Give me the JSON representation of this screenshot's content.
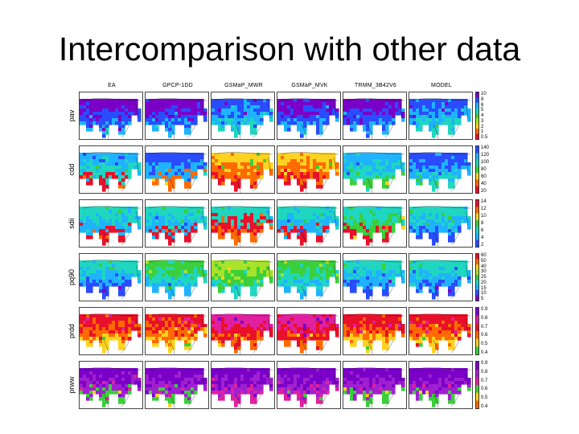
{
  "slide": {
    "title": "Intercomparison with other data"
  },
  "figure": {
    "columns": [
      "EA",
      "GPCP-1DD",
      "GSMaP_MWR",
      "GSMaP_MVK",
      "TRMM_3B42V6",
      "MODEL"
    ],
    "rows": [
      {
        "label": "pav",
        "ticks": [
          "10",
          "8",
          "6",
          "5",
          "4",
          "3",
          "2",
          "1",
          "0.5"
        ],
        "palette": [
          "#7a00c8",
          "#2a4cff",
          "#1fb3ff",
          "#1fd6c0",
          "#3bcf3b",
          "#a8e22a",
          "#ffd21f",
          "#ff6a00",
          "#e8102a"
        ],
        "dominant": [
          [
            0,
            1,
            2
          ],
          [
            0,
            1,
            2
          ],
          [
            1,
            2,
            3
          ],
          [
            0,
            1,
            2
          ],
          [
            0,
            1,
            2
          ],
          [
            1,
            2,
            3
          ]
        ]
      },
      {
        "label": "cdd",
        "ticks": [
          "140",
          "120",
          "100",
          "80",
          "60",
          "40",
          "20"
        ],
        "palette": [
          "#2a4cff",
          "#1fb3ff",
          "#1fd6c0",
          "#3bcf3b",
          "#ffd21f",
          "#ff6a00",
          "#e8102a"
        ],
        "dominant": [
          [
            1,
            2,
            6
          ],
          [
            0,
            1,
            5
          ],
          [
            4,
            5,
            6
          ],
          [
            4,
            5,
            6
          ],
          [
            1,
            2,
            3
          ],
          [
            0,
            1,
            2
          ]
        ]
      },
      {
        "label": "sdii",
        "ticks": [
          "14",
          "12",
          "10",
          "8",
          "6",
          "4",
          "2"
        ],
        "palette": [
          "#e8102a",
          "#ff6a00",
          "#ffd21f",
          "#3bcf3b",
          "#1fd6c0",
          "#1fb3ff",
          "#2a4cff"
        ],
        "dominant": [
          [
            4,
            5,
            0
          ],
          [
            4,
            5,
            0
          ],
          [
            4,
            0,
            1
          ],
          [
            4,
            5,
            0
          ],
          [
            4,
            3,
            0
          ],
          [
            4,
            5,
            6
          ]
        ]
      },
      {
        "label": "pq90",
        "ticks": [
          "60",
          "50",
          "40",
          "30",
          "25",
          "20",
          "15",
          "10",
          "5"
        ],
        "palette": [
          "#e8102a",
          "#ff6a00",
          "#ffd21f",
          "#a8e22a",
          "#3bcf3b",
          "#1fd6c0",
          "#1fb3ff",
          "#2a4cff",
          "#7a00c8"
        ],
        "dominant": [
          [
            5,
            6,
            7
          ],
          [
            4,
            5,
            6
          ],
          [
            3,
            4,
            5
          ],
          [
            4,
            5,
            6
          ],
          [
            5,
            6,
            7
          ],
          [
            5,
            6,
            7
          ]
        ]
      },
      {
        "label": "prdd",
        "ticks": [
          "0.9",
          "0.8",
          "0.7",
          "0.6",
          "0.5",
          "0.4"
        ],
        "palette": [
          "#7a00c8",
          "#e020a0",
          "#e8102a",
          "#ff6a00",
          "#ffd21f",
          "#3bcf3b"
        ],
        "dominant": [
          [
            2,
            3,
            4
          ],
          [
            2,
            3,
            4
          ],
          [
            1,
            2,
            3
          ],
          [
            1,
            2,
            3
          ],
          [
            2,
            3,
            4
          ],
          [
            2,
            3,
            4
          ]
        ]
      },
      {
        "label": "prww",
        "ticks": [
          "0.9",
          "0.8",
          "0.7",
          "0.6",
          "0.5",
          "0.4"
        ],
        "palette": [
          "#7a00c8",
          "#a020d0",
          "#e020a0",
          "#3bcf3b",
          "#ffd21f",
          "#ff6a00"
        ],
        "dominant": [
          [
            0,
            1,
            3
          ],
          [
            0,
            1,
            3
          ],
          [
            0,
            1,
            2
          ],
          [
            0,
            1,
            2
          ],
          [
            0,
            1,
            3
          ],
          [
            0,
            1,
            3
          ]
        ]
      }
    ]
  }
}
